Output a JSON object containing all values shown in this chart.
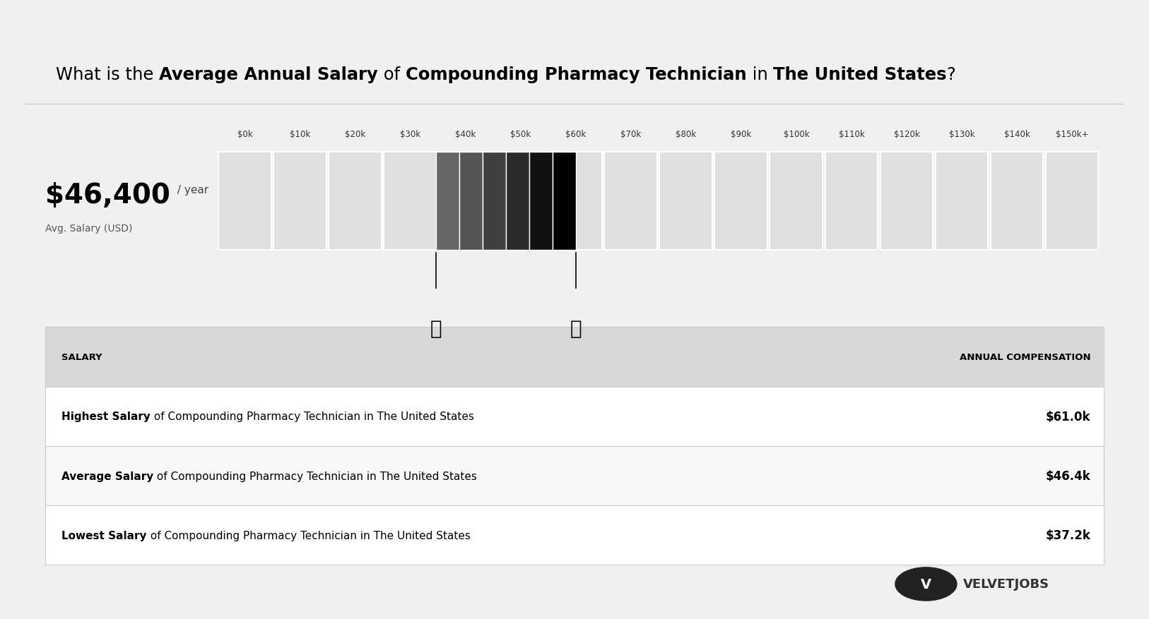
{
  "title_parts": [
    {
      "text": "What is the ",
      "bold": false
    },
    {
      "text": "Average Annual Salary",
      "bold": true
    },
    {
      "text": " of ",
      "bold": false
    },
    {
      "text": "Compounding Pharmacy Technician",
      "bold": true
    },
    {
      "text": " in ",
      "bold": false
    },
    {
      "text": "The United States",
      "bold": true
    },
    {
      "text": "?",
      "bold": false
    }
  ],
  "salary_display": "$46,400",
  "salary_unit": " / year",
  "salary_sublabel": "Avg. Salary (USD)",
  "tick_labels": [
    "$0k",
    "$10k",
    "$20k",
    "$30k",
    "$40k",
    "$50k",
    "$60k",
    "$70k",
    "$80k",
    "$90k",
    "$100k",
    "$110k",
    "$120k",
    "$130k",
    "$140k",
    "$150k+"
  ],
  "num_segments": 16,
  "lowest_k": 37.2,
  "average_k": 46.4,
  "highest_k": 61.0,
  "total_max_k": 150,
  "bar_bg_color": "#e0e0e0",
  "bar_active_colors": [
    "#555555",
    "#444444",
    "#333333",
    "#222222",
    "#111111",
    "#000000"
  ],
  "bar_height": 0.55,
  "table_header_bg": "#d8d8d8",
  "table_row_bg_odd": "#ffffff",
  "table_row_bg_even": "#f5f5f5",
  "table_header_salary": "SALARY",
  "table_header_comp": "ANNUAL COMPENSATION",
  "rows": [
    {
      "label_bold": "Highest Salary",
      "label_rest": " of Compounding Pharmacy Technician in The United States",
      "value": "$61.0k"
    },
    {
      "label_bold": "Average Salary",
      "label_rest": " of Compounding Pharmacy Technician in The United States",
      "value": "$46.4k"
    },
    {
      "label_bold": "Lowest Salary",
      "label_rest": " of Compounding Pharmacy Technician in The United States",
      "value": "$37.2k"
    }
  ],
  "bg_outer": "#f0f0f0",
  "bg_inner": "#ffffff",
  "velvetjobs_text": "VELVETJOBS",
  "fig_width": 16.26,
  "fig_height": 8.78
}
